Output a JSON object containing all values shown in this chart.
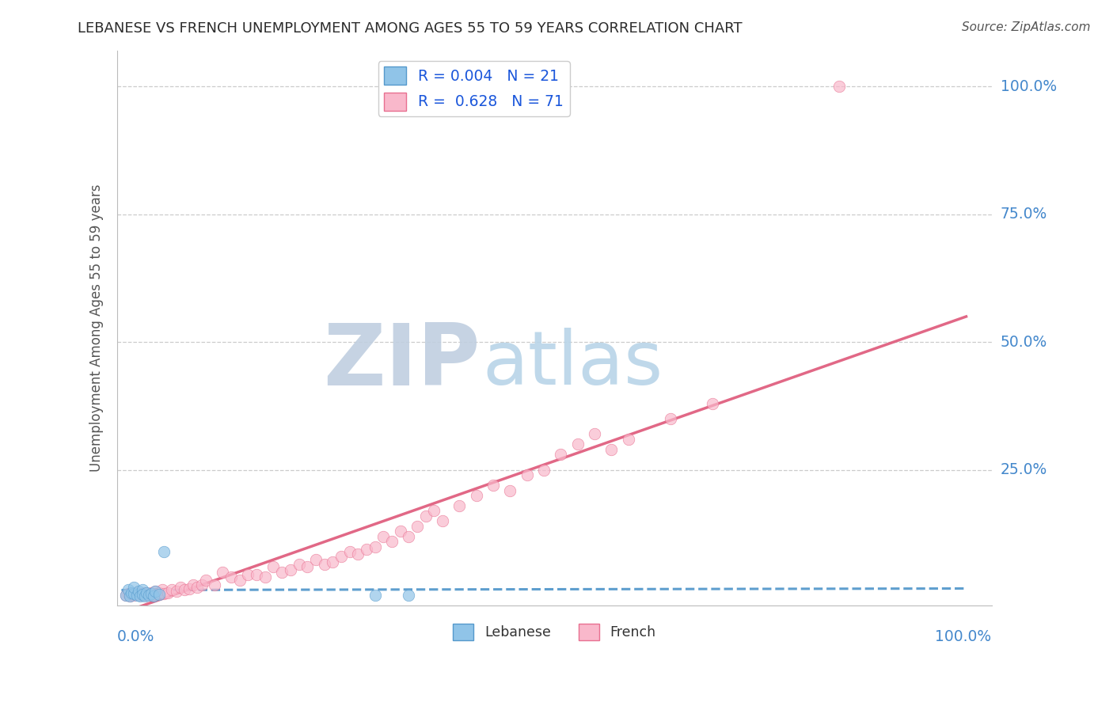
{
  "title": "LEBANESE VS FRENCH UNEMPLOYMENT AMONG AGES 55 TO 59 YEARS CORRELATION CHART",
  "source": "Source: ZipAtlas.com",
  "ylabel": "Unemployment Among Ages 55 to 59 years",
  "ytick_labels": [
    "25.0%",
    "50.0%",
    "75.0%",
    "100.0%"
  ],
  "ytick_values": [
    0.25,
    0.5,
    0.75,
    1.0
  ],
  "xlim": [
    -0.005,
    1.03
  ],
  "ylim": [
    -0.015,
    1.07
  ],
  "watermark_zip": "ZIP",
  "watermark_atlas": "atlas",
  "watermark_zip_color": "#c0cfe0",
  "watermark_atlas_color": "#b8d4e8",
  "blue_color": "#90c4e8",
  "blue_edge_color": "#5599cc",
  "pink_color": "#f9b8cb",
  "pink_edge_color": "#e87090",
  "blue_line_color": "#5599cc",
  "pink_line_color": "#e06080",
  "bg_color": "#ffffff",
  "grid_color": "#cccccc",
  "title_color": "#2c2c2c",
  "axis_label_color": "#4488cc",
  "source_color": "#555555",
  "legend1_label1": "R = 0.004   N = 21",
  "legend1_label2": "R =  0.628   N = 71",
  "legend2_label1": "Lebanese",
  "legend2_label2": "French",
  "legend_text_color": "#1a56db",
  "blue_x": [
    0.005,
    0.008,
    0.01,
    0.012,
    0.015,
    0.015,
    0.018,
    0.02,
    0.022,
    0.025,
    0.025,
    0.028,
    0.03,
    0.032,
    0.035,
    0.038,
    0.04,
    0.045,
    0.05,
    0.3,
    0.34
  ],
  "blue_y": [
    0.005,
    0.015,
    0.003,
    0.01,
    0.008,
    0.02,
    0.005,
    0.012,
    0.003,
    0.015,
    0.007,
    0.003,
    0.01,
    0.005,
    0.008,
    0.003,
    0.012,
    0.006,
    0.09,
    0.005,
    0.005
  ],
  "pink_x": [
    0.005,
    0.008,
    0.01,
    0.012,
    0.015,
    0.018,
    0.02,
    0.022,
    0.025,
    0.028,
    0.03,
    0.032,
    0.035,
    0.038,
    0.04,
    0.042,
    0.045,
    0.048,
    0.05,
    0.055,
    0.06,
    0.065,
    0.07,
    0.075,
    0.08,
    0.085,
    0.09,
    0.095,
    0.1,
    0.11,
    0.12,
    0.13,
    0.14,
    0.15,
    0.16,
    0.17,
    0.18,
    0.19,
    0.2,
    0.21,
    0.22,
    0.23,
    0.24,
    0.25,
    0.26,
    0.27,
    0.28,
    0.29,
    0.3,
    0.31,
    0.32,
    0.33,
    0.34,
    0.35,
    0.36,
    0.37,
    0.38,
    0.4,
    0.42,
    0.44,
    0.46,
    0.48,
    0.5,
    0.52,
    0.54,
    0.56,
    0.58,
    0.6,
    0.65,
    0.7,
    0.85
  ],
  "pink_y": [
    0.005,
    0.008,
    0.003,
    0.006,
    0.005,
    0.01,
    0.008,
    0.005,
    0.008,
    0.01,
    0.005,
    0.008,
    0.01,
    0.005,
    0.012,
    0.008,
    0.01,
    0.015,
    0.008,
    0.01,
    0.015,
    0.012,
    0.02,
    0.015,
    0.018,
    0.025,
    0.02,
    0.025,
    0.035,
    0.025,
    0.05,
    0.04,
    0.035,
    0.045,
    0.045,
    0.04,
    0.06,
    0.05,
    0.055,
    0.065,
    0.06,
    0.075,
    0.065,
    0.07,
    0.08,
    0.09,
    0.085,
    0.095,
    0.1,
    0.12,
    0.11,
    0.13,
    0.12,
    0.14,
    0.16,
    0.17,
    0.15,
    0.18,
    0.2,
    0.22,
    0.21,
    0.24,
    0.25,
    0.28,
    0.3,
    0.32,
    0.29,
    0.31,
    0.35,
    0.38,
    1.0
  ],
  "pink_line_x0": 0.0,
  "pink_line_y0": -0.03,
  "pink_line_x1": 1.0,
  "pink_line_y1": 0.55,
  "blue_line_x0": 0.0,
  "blue_line_y0": 0.015,
  "blue_line_x1": 1.0,
  "blue_line_y1": 0.018
}
